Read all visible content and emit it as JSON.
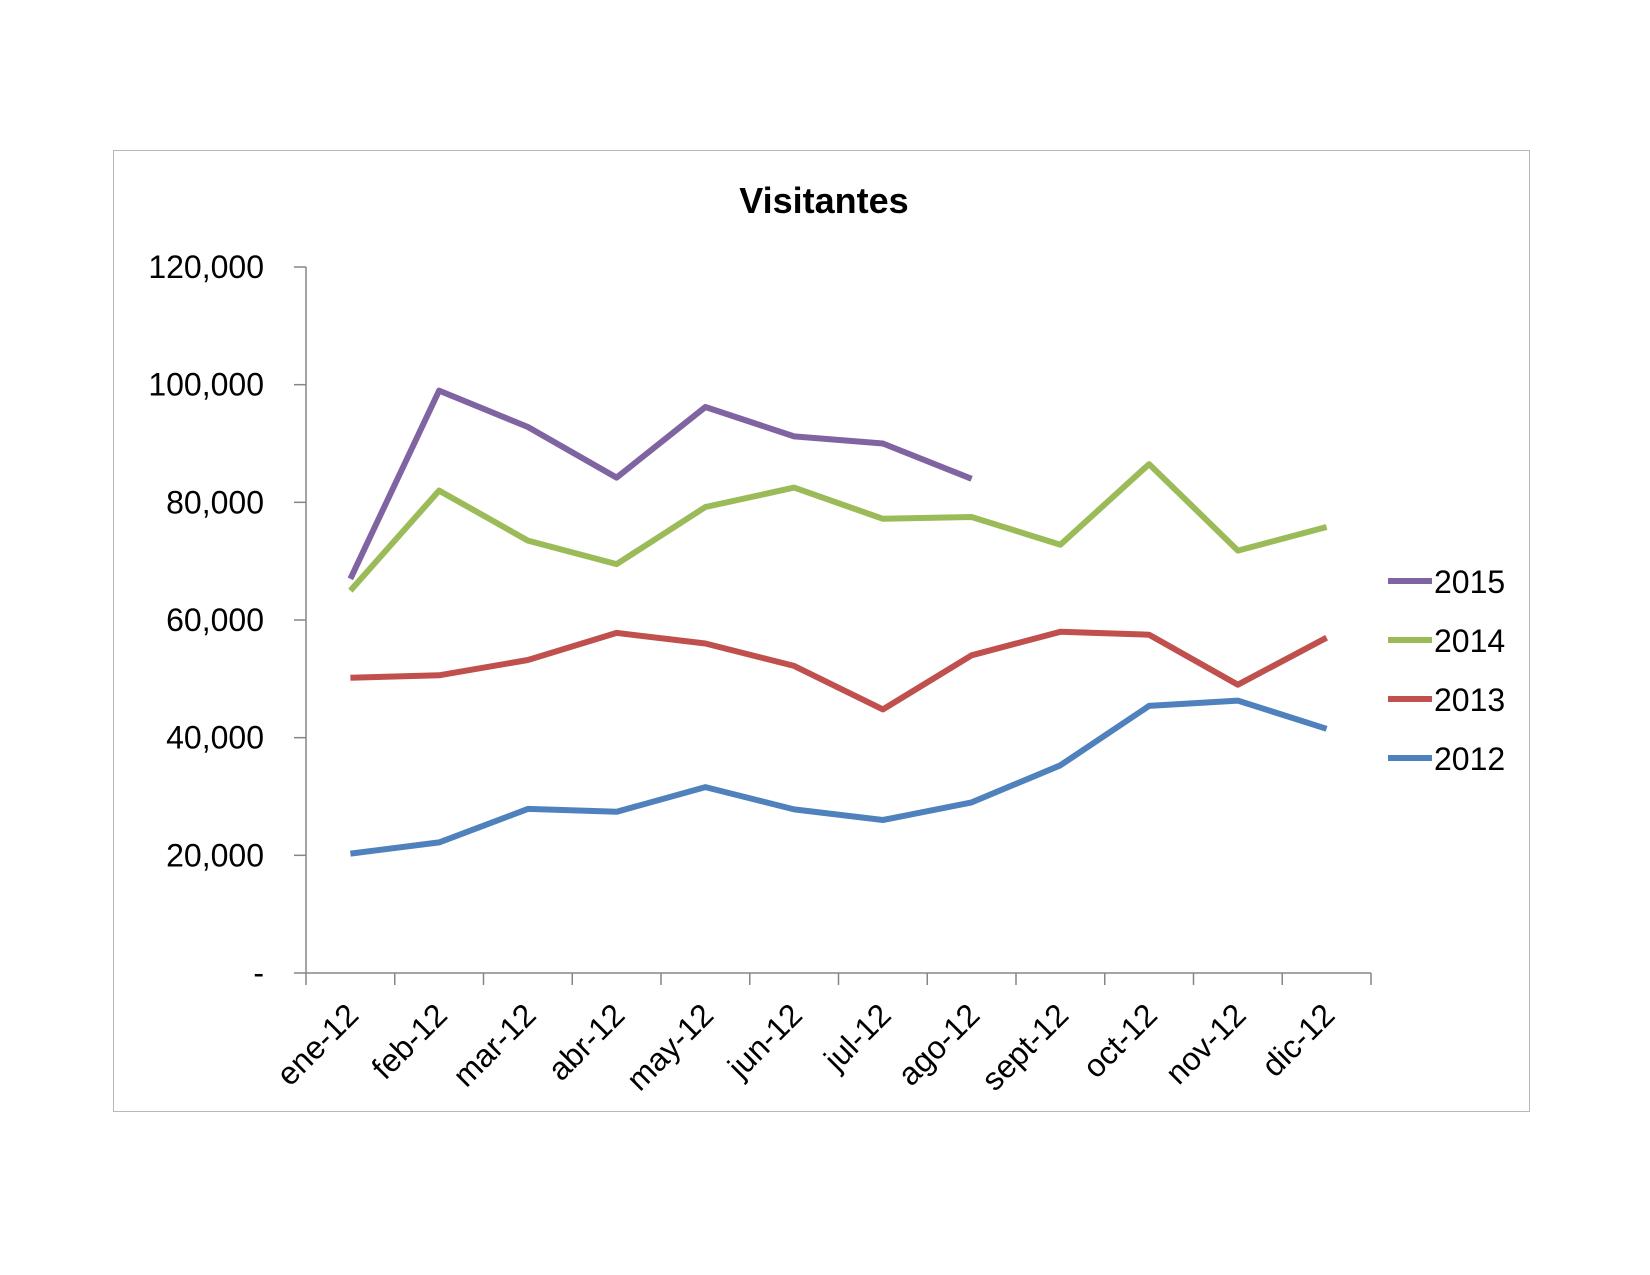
{
  "chart_data": {
    "type": "line",
    "title": "Visitantes",
    "categories": [
      "ene-12",
      "feb-12",
      "mar-12",
      "abr-12",
      "may-12",
      "jun-12",
      "jul-12",
      "ago-12",
      "sept-12",
      "oct-12",
      "nov-12",
      "dic-12"
    ],
    "ylim": [
      0,
      120000
    ],
    "yticks": [
      0,
      20000,
      40000,
      60000,
      80000,
      100000,
      120000
    ],
    "ytick_labels": [
      "-",
      "20,000",
      "40,000",
      "60,000",
      "80,000",
      "100,000",
      "120,000"
    ],
    "legend_position": "right",
    "grid": false,
    "series": [
      {
        "name": "2015",
        "color": "#8064A2",
        "values": [
          67000,
          99000,
          92800,
          84200,
          96200,
          91200,
          90000,
          84000,
          null,
          null,
          null,
          null
        ]
      },
      {
        "name": "2014",
        "color": "#9BBB59",
        "values": [
          65000,
          82000,
          73500,
          69500,
          79200,
          82500,
          77200,
          77500,
          72800,
          86500,
          71800,
          75800
        ]
      },
      {
        "name": "2013",
        "color": "#C0504D",
        "values": [
          50200,
          50600,
          53200,
          57800,
          56000,
          52200,
          44800,
          54000,
          58000,
          57500,
          49000,
          57000
        ]
      },
      {
        "name": "2012",
        "color": "#4F81BD",
        "values": [
          20300,
          22200,
          27900,
          27400,
          31600,
          27800,
          26000,
          29000,
          35300,
          45400,
          46300,
          41500
        ]
      }
    ]
  }
}
